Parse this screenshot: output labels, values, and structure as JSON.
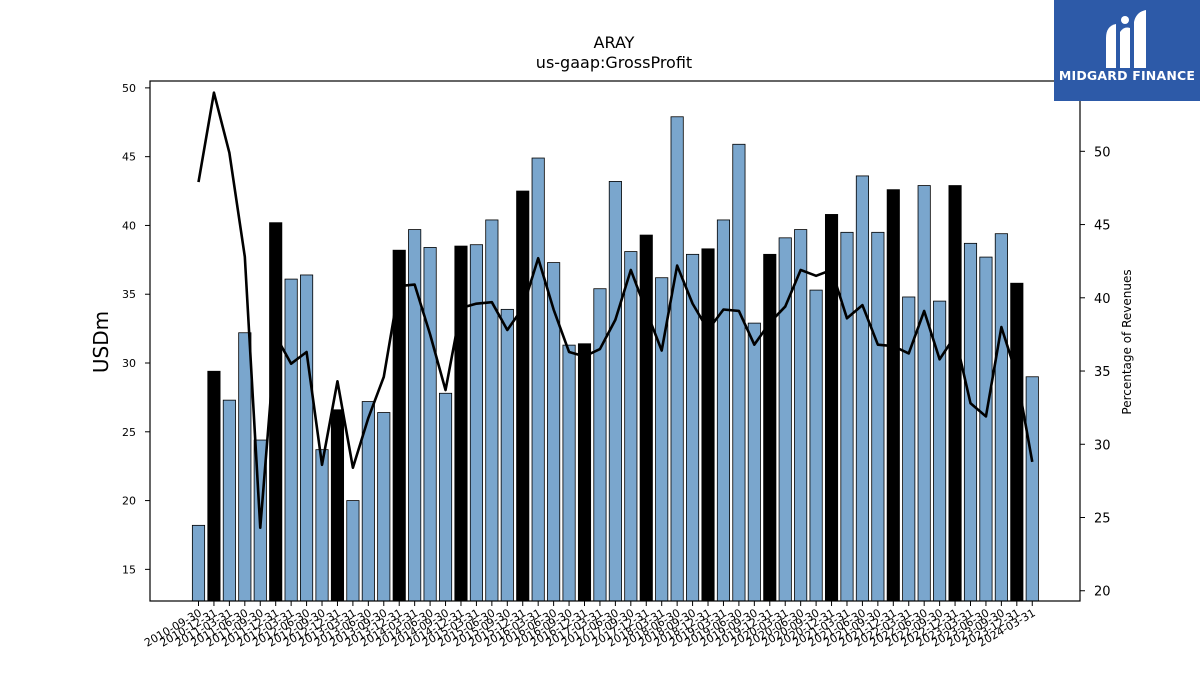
{
  "chart_data": {
    "type": "bar",
    "title": "ARAY",
    "subtitle": "us-gaap:GrossProfit",
    "ylabel": "USDm",
    "y2label": "Percentage of Revenues",
    "ylim": [
      12.7,
      50.5
    ],
    "y2lim": [
      19.3,
      54.8
    ],
    "yticks": [
      15,
      20,
      25,
      30,
      35,
      40,
      45,
      50
    ],
    "y2ticks": [
      20,
      25,
      30,
      35,
      40,
      45,
      50
    ],
    "categories": [
      "2010-09-30",
      "2010-12-31",
      "2011-03-31",
      "2011-06-30",
      "2011-09-30",
      "2011-12-31",
      "2012-03-31",
      "2012-06-30",
      "2012-09-30",
      "2012-12-31",
      "2013-03-31",
      "2013-06-30",
      "2013-09-30",
      "2013-12-31",
      "2014-03-31",
      "2014-06-30",
      "2014-09-30",
      "2014-12-31",
      "2015-03-31",
      "2015-06-30",
      "2015-09-30",
      "2015-12-31",
      "2016-03-31",
      "2016-06-30",
      "2016-09-30",
      "2016-12-31",
      "2017-03-31",
      "2017-06-30",
      "2017-09-30",
      "2017-12-31",
      "2018-03-31",
      "2018-06-30",
      "2018-09-30",
      "2018-12-31",
      "2019-03-31",
      "2019-06-30",
      "2019-09-30",
      "2019-12-31",
      "2020-03-31",
      "2020-06-30",
      "2020-09-30",
      "2020-12-31",
      "2021-03-31",
      "2021-06-30",
      "2021-09-30",
      "2021-12-31",
      "2022-03-31",
      "2022-06-30",
      "2022-09-30",
      "2022-12-31",
      "2023-03-31",
      "2023-06-30",
      "2023-09-30",
      "2023-12-31",
      "2024-03-31"
    ],
    "values": [
      18.2,
      29.4,
      27.3,
      32.2,
      24.4,
      40.2,
      36.1,
      36.4,
      23.7,
      26.6,
      20.0,
      27.2,
      26.4,
      38.2,
      39.7,
      38.4,
      27.8,
      38.5,
      38.6,
      40.4,
      33.9,
      42.5,
      44.9,
      37.3,
      31.3,
      31.4,
      35.4,
      43.2,
      38.1,
      39.3,
      36.2,
      47.9,
      37.9,
      38.3,
      40.4,
      45.9,
      32.9,
      37.9,
      39.1,
      39.7,
      35.3,
      40.8,
      39.5,
      43.6,
      39.5,
      42.6,
      34.8,
      42.9,
      34.5,
      42.9,
      38.7,
      37.7,
      39.4,
      35.8,
      29.0
    ],
    "highlight": [
      false,
      true,
      false,
      false,
      false,
      true,
      false,
      false,
      false,
      true,
      false,
      false,
      false,
      true,
      false,
      false,
      false,
      true,
      false,
      false,
      false,
      true,
      false,
      false,
      false,
      true,
      false,
      false,
      false,
      true,
      false,
      false,
      false,
      true,
      false,
      false,
      false,
      true,
      false,
      false,
      false,
      true,
      false,
      false,
      false,
      true,
      false,
      false,
      false,
      true,
      false,
      false,
      false,
      true,
      false
    ],
    "line_values": [
      47.9,
      54.0,
      49.9,
      42.8,
      24.3,
      37.4,
      35.5,
      36.3,
      28.6,
      34.3,
      28.4,
      31.8,
      34.6,
      40.8,
      40.9,
      37.5,
      33.7,
      39.3,
      39.6,
      39.7,
      37.8,
      39.3,
      42.7,
      39.2,
      36.3,
      36.0,
      36.5,
      38.5,
      41.9,
      39.1,
      36.4,
      42.2,
      39.6,
      37.8,
      39.2,
      39.1,
      36.8,
      38.3,
      39.4,
      41.9,
      41.5,
      41.9,
      38.6,
      39.5,
      36.8,
      36.7,
      36.2,
      39.1,
      35.8,
      37.4,
      32.8,
      31.9,
      38.0,
      34.7,
      28.8
    ],
    "colors": {
      "bar": "#7aa6cd",
      "highlight_bar": "#000000",
      "line": "#000000",
      "axis": "#000000"
    },
    "grid": false
  },
  "logo": {
    "text": "MIDGARD FINANCE",
    "background": "#2d5aa8"
  }
}
